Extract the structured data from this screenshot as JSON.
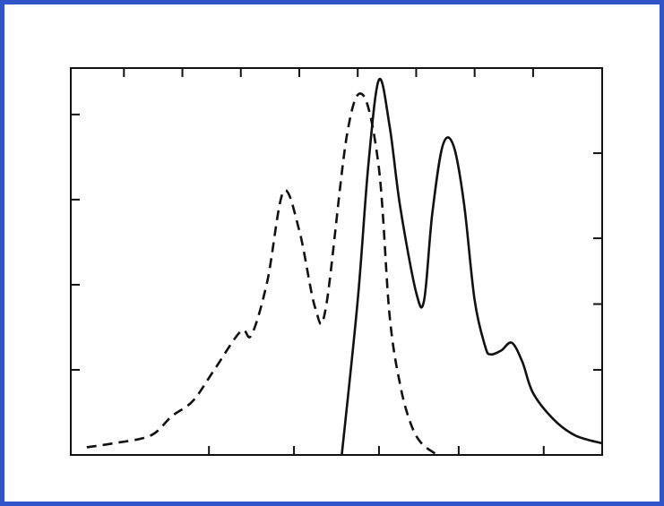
{
  "page": {
    "background_color": "#2f55c9",
    "panel_color": "#ffffff",
    "ink_color": "#111111"
  },
  "chart_data": {
    "type": "line",
    "title": "",
    "xlabel": "",
    "ylabel": "",
    "xlim": [
      0,
      100
    ],
    "ylim": [
      0,
      100
    ],
    "grid": false,
    "legend": "none",
    "tick_labels_shown": false,
    "x_ticks_top": [
      10,
      21,
      32,
      43,
      54,
      65,
      76,
      87
    ],
    "x_ticks_bottom": [
      26,
      42,
      58,
      73,
      89
    ],
    "y_ticks_left": [
      22,
      44,
      66,
      88
    ],
    "y_ticks_right": [
      22,
      39,
      56,
      78
    ],
    "series": [
      {
        "style": "dashed",
        "points": [
          [
            3,
            2
          ],
          [
            8,
            3
          ],
          [
            15,
            5
          ],
          [
            19,
            10
          ],
          [
            23,
            14
          ],
          [
            27,
            22
          ],
          [
            32,
            32
          ],
          [
            34,
            31
          ],
          [
            37,
            45
          ],
          [
            40,
            68
          ],
          [
            43,
            58
          ],
          [
            46,
            38
          ],
          [
            48,
            38
          ],
          [
            52,
            83
          ],
          [
            55,
            93
          ],
          [
            58,
            74
          ],
          [
            60,
            36
          ],
          [
            62,
            18
          ],
          [
            64,
            8
          ],
          [
            66,
            3
          ],
          [
            69,
            0
          ]
        ]
      },
      {
        "style": "solid",
        "points": [
          [
            51,
            0
          ],
          [
            54,
            40
          ],
          [
            56,
            75
          ],
          [
            58,
            97
          ],
          [
            60,
            85
          ],
          [
            62,
            64
          ],
          [
            65,
            42
          ],
          [
            66.5,
            40
          ],
          [
            68,
            62
          ],
          [
            70,
            80
          ],
          [
            72,
            80
          ],
          [
            74,
            65
          ],
          [
            76,
            40
          ],
          [
            78,
            28
          ],
          [
            79,
            26
          ],
          [
            81,
            27
          ],
          [
            83,
            29
          ],
          [
            85,
            24
          ],
          [
            87,
            16
          ],
          [
            91,
            9
          ],
          [
            95,
            5
          ],
          [
            100,
            3
          ]
        ]
      }
    ]
  }
}
